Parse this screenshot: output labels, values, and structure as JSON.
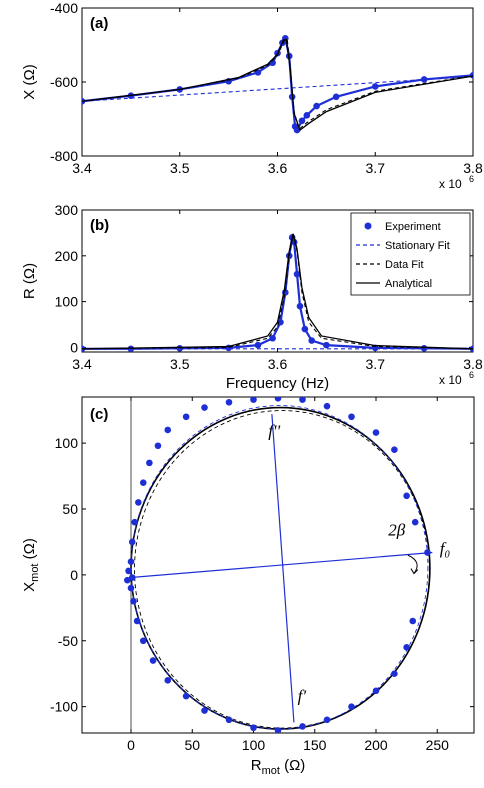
{
  "chart_data": [
    {
      "panel_label": "(a)",
      "type": "line",
      "ylabel": "X (Ω)",
      "xlabel": "",
      "x_multiplier": "x 10",
      "x_multiplier_exp": "6",
      "xlim": [
        3.4,
        3.8
      ],
      "ylim": [
        -800,
        -400
      ],
      "x_ticks": [
        "3.4",
        "3.5",
        "3.6",
        "3.7",
        "3.8"
      ],
      "y_ticks": [
        "-800",
        "-600",
        "-400"
      ],
      "series": [
        {
          "name": "Experiment",
          "style": "dots",
          "color": "#1f2fd6",
          "x": [
            3.4,
            3.45,
            3.5,
            3.55,
            3.58,
            3.595,
            3.6,
            3.605,
            3.608,
            3.612,
            3.615,
            3.618,
            3.62,
            3.625,
            3.63,
            3.64,
            3.66,
            3.7,
            3.75,
            3.8
          ],
          "y": [
            -652,
            -637,
            -620,
            -598,
            -574,
            -548,
            -522,
            -494,
            -482,
            -530,
            -640,
            -720,
            -730,
            -705,
            -690,
            -665,
            -640,
            -612,
            -593,
            -582
          ]
        },
        {
          "name": "Stationary Fit",
          "style": "dashed",
          "color": "#1f2fd6",
          "x": [
            3.4,
            3.8
          ],
          "y": [
            -652,
            -585
          ]
        },
        {
          "name": "Data Fit",
          "style": "dashed",
          "color": "#000000",
          "x": [
            3.4,
            3.5,
            3.56,
            3.59,
            3.6,
            3.607,
            3.61,
            3.613,
            3.617,
            3.622,
            3.63,
            3.65,
            3.7,
            3.8
          ],
          "y": [
            -652,
            -620,
            -590,
            -555,
            -528,
            -488,
            -486,
            -560,
            -680,
            -728,
            -710,
            -675,
            -625,
            -583
          ]
        },
        {
          "name": "Analytical",
          "style": "solid",
          "color": "#000000",
          "x": [
            3.4,
            3.5,
            3.56,
            3.59,
            3.6,
            3.606,
            3.609,
            3.613,
            3.617,
            3.623,
            3.632,
            3.65,
            3.7,
            3.8
          ],
          "y": [
            -652,
            -620,
            -588,
            -552,
            -525,
            -487,
            -485,
            -565,
            -685,
            -730,
            -712,
            -680,
            -628,
            -584
          ]
        }
      ]
    },
    {
      "panel_label": "(b)",
      "type": "line",
      "ylabel": "R (Ω)",
      "xlabel": "Frequency (Hz)",
      "x_multiplier": "x 10",
      "x_multiplier_exp": "6",
      "xlim": [
        3.4,
        3.8
      ],
      "ylim": [
        -10,
        300
      ],
      "x_ticks": [
        "3.4",
        "3.5",
        "3.6",
        "3.7",
        "3.8"
      ],
      "y_ticks": [
        "0",
        "100",
        "200",
        "300"
      ],
      "legend_position": "top-right",
      "series": [
        {
          "name": "Experiment",
          "style": "dots",
          "color": "#1f2fd6",
          "x": [
            3.4,
            3.45,
            3.5,
            3.55,
            3.58,
            3.595,
            3.603,
            3.608,
            3.612,
            3.615,
            3.617,
            3.62,
            3.623,
            3.628,
            3.635,
            3.65,
            3.7,
            3.75,
            3.8
          ],
          "y": [
            -3,
            -3,
            -2,
            -1,
            5,
            20,
            55,
            120,
            200,
            240,
            230,
            160,
            90,
            40,
            15,
            5,
            -1,
            -2,
            -3
          ]
        },
        {
          "name": "Stationary Fit",
          "style": "dashed",
          "color": "#1f2fd6",
          "x": [
            3.4,
            3.8
          ],
          "y": [
            -3,
            -3
          ]
        },
        {
          "name": "Data Fit",
          "style": "dashed",
          "color": "#000000",
          "x": [
            3.4,
            3.55,
            3.59,
            3.6,
            3.607,
            3.612,
            3.616,
            3.62,
            3.625,
            3.632,
            3.645,
            3.7,
            3.8
          ],
          "y": [
            -3,
            0,
            20,
            45,
            110,
            200,
            245,
            210,
            120,
            55,
            20,
            2,
            -3
          ]
        },
        {
          "name": "Analytical",
          "style": "solid",
          "color": "#000000",
          "x": [
            3.4,
            3.55,
            3.59,
            3.6,
            3.607,
            3.612,
            3.616,
            3.62,
            3.625,
            3.632,
            3.645,
            3.7,
            3.8
          ],
          "y": [
            -3,
            2,
            25,
            55,
            125,
            210,
            248,
            215,
            130,
            65,
            25,
            4,
            -3
          ]
        }
      ]
    },
    {
      "panel_label": "(c)",
      "type": "scatter",
      "ylabel_main": "X",
      "ylabel_sub": "mot",
      "ylabel_unit": " (Ω)",
      "xlabel_main": "R",
      "xlabel_sub": "mot",
      "xlabel_unit": " (Ω)",
      "xlim": [
        -40,
        280
      ],
      "ylim": [
        -120,
        135
      ],
      "x_ticks": [
        "0",
        "50",
        "100",
        "150",
        "200",
        "250"
      ],
      "y_ticks": [
        "-100",
        "-50",
        "0",
        "50",
        "100"
      ],
      "circle": {
        "center_r": 122,
        "center_x": 5,
        "radius": 122
      },
      "experiment_points": [
        [
          -3,
          -4
        ],
        [
          0,
          10
        ],
        [
          1,
          25
        ],
        [
          3,
          40
        ],
        [
          6,
          55
        ],
        [
          10,
          70
        ],
        [
          15,
          85
        ],
        [
          22,
          98
        ],
        [
          30,
          110
        ],
        [
          45,
          120
        ],
        [
          60,
          127
        ],
        [
          80,
          131
        ],
        [
          100,
          133
        ],
        [
          120,
          134
        ],
        [
          140,
          133
        ],
        [
          160,
          128
        ],
        [
          180,
          120
        ],
        [
          200,
          108
        ],
        [
          215,
          95
        ],
        [
          225,
          60
        ],
        [
          232,
          40
        ],
        [
          242,
          17
        ],
        [
          230,
          -35
        ],
        [
          225,
          -55
        ],
        [
          215,
          -75
        ],
        [
          200,
          -88
        ],
        [
          180,
          -100
        ],
        [
          160,
          -110
        ],
        [
          140,
          -115
        ],
        [
          120,
          -118
        ],
        [
          100,
          -116
        ],
        [
          80,
          -110
        ],
        [
          60,
          -103
        ],
        [
          45,
          -92
        ],
        [
          30,
          -80
        ],
        [
          18,
          -65
        ],
        [
          10,
          -50
        ],
        [
          5,
          -35
        ],
        [
          2,
          -20
        ],
        [
          0,
          -10
        ],
        [
          1,
          -2
        ],
        [
          -2,
          3
        ]
      ],
      "diameters": [
        {
          "from": [
            0,
            -2
          ],
          "to": [
            246,
            17
          ]
        },
        {
          "from": [
            115,
            122
          ],
          "to": [
            133,
            -112
          ]
        }
      ],
      "annotations": [
        {
          "text": "f''",
          "r": 112,
          "x": 105
        },
        {
          "text": "2β",
          "r": 210,
          "x": 30
        },
        {
          "text": "f₀",
          "r": 252,
          "x": 16
        },
        {
          "text": "f'",
          "r": 136,
          "x": -96
        }
      ]
    }
  ]
}
